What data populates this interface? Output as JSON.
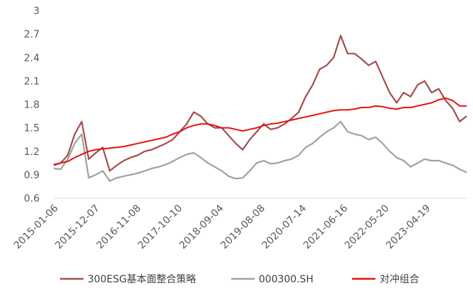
{
  "chart_data": {
    "type": "line",
    "title": "",
    "xlabel": "",
    "ylabel": "",
    "ylim": [
      0.6,
      3.0
    ],
    "y_ticks": [
      "3",
      "2.7",
      "2.4",
      "2.1",
      "1.8",
      "1.5",
      "1.2",
      "0.9",
      "0.6"
    ],
    "x_ticks": [
      "2015-01-06",
      "2015-12-07",
      "2016-11-08",
      "2017-10-10",
      "2018-09-04",
      "2019-08-08",
      "2020-07-14",
      "2021-06-16",
      "2022-05-20",
      "2023-04-19"
    ],
    "grid": false,
    "legend_position": "bottom",
    "series": [
      {
        "name": "300ESG基本面整合策略",
        "color": "#a64b4b",
        "values": [
          1.02,
          1.05,
          1.15,
          1.42,
          1.58,
          1.1,
          1.18,
          1.25,
          0.95,
          1.02,
          1.08,
          1.12,
          1.15,
          1.2,
          1.22,
          1.26,
          1.3,
          1.35,
          1.45,
          1.55,
          1.7,
          1.65,
          1.55,
          1.5,
          1.5,
          1.4,
          1.3,
          1.22,
          1.35,
          1.45,
          1.55,
          1.48,
          1.5,
          1.55,
          1.62,
          1.7,
          1.9,
          2.05,
          2.25,
          2.3,
          2.4,
          2.68,
          2.45,
          2.45,
          2.38,
          2.3,
          2.35,
          2.15,
          1.95,
          1.82,
          1.95,
          1.9,
          2.05,
          2.1,
          1.95,
          2.0,
          1.85,
          1.75,
          1.58,
          1.65
        ]
      },
      {
        "name": "000300.SH",
        "color": "#a0a0a0",
        "values": [
          0.98,
          0.97,
          1.1,
          1.3,
          1.42,
          0.86,
          0.9,
          0.95,
          0.82,
          0.86,
          0.88,
          0.9,
          0.92,
          0.95,
          0.98,
          1.0,
          1.03,
          1.07,
          1.12,
          1.16,
          1.18,
          1.12,
          1.05,
          1.0,
          0.95,
          0.88,
          0.85,
          0.86,
          0.95,
          1.05,
          1.08,
          1.04,
          1.05,
          1.08,
          1.1,
          1.15,
          1.25,
          1.3,
          1.38,
          1.45,
          1.5,
          1.58,
          1.45,
          1.42,
          1.4,
          1.35,
          1.38,
          1.3,
          1.2,
          1.12,
          1.08,
          1.0,
          1.05,
          1.1,
          1.08,
          1.08,
          1.05,
          1.02,
          0.97,
          0.93
        ]
      },
      {
        "name": "对冲组合",
        "color": "#e81010",
        "values": [
          1.03,
          1.05,
          1.07,
          1.12,
          1.16,
          1.2,
          1.22,
          1.23,
          1.24,
          1.25,
          1.26,
          1.28,
          1.3,
          1.32,
          1.34,
          1.36,
          1.38,
          1.42,
          1.45,
          1.5,
          1.53,
          1.55,
          1.55,
          1.53,
          1.5,
          1.5,
          1.48,
          1.46,
          1.48,
          1.5,
          1.53,
          1.55,
          1.56,
          1.58,
          1.6,
          1.62,
          1.64,
          1.66,
          1.68,
          1.7,
          1.72,
          1.73,
          1.73,
          1.74,
          1.76,
          1.76,
          1.78,
          1.77,
          1.75,
          1.74,
          1.76,
          1.76,
          1.78,
          1.8,
          1.82,
          1.86,
          1.88,
          1.85,
          1.78,
          1.78
        ]
      }
    ]
  }
}
